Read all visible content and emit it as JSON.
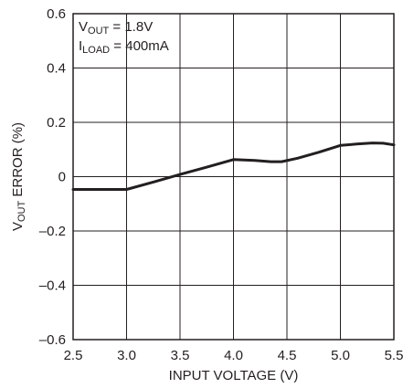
{
  "chart_data": {
    "type": "line",
    "title": "",
    "xlabel": "INPUT VOLTAGE (V)",
    "ylabel": {
      "main": "V",
      "sub": "OUT",
      "rest": " ERROR (%)"
    },
    "xlim": [
      2.5,
      5.5
    ],
    "ylim": [
      -0.6,
      0.6
    ],
    "xticks": [
      "2.5",
      "3.0",
      "3.5",
      "4.0",
      "4.5",
      "5.0",
      "5.5"
    ],
    "yticks": [
      "0.6",
      "0.4",
      "0.2",
      "0",
      "–0.2",
      "–0.4",
      "–0.6"
    ],
    "grid": true,
    "annotations": [
      {
        "main": "V",
        "sub": "OUT",
        "rest": " = 1.8V"
      },
      {
        "main": "I",
        "sub": "LOAD",
        "rest": " = 400mA"
      }
    ],
    "series": [
      {
        "x": [
          2.5,
          3.0,
          3.25,
          3.5,
          3.75,
          4.0,
          4.2,
          4.35,
          4.45,
          4.6,
          4.8,
          5.0,
          5.15,
          5.3,
          5.4,
          5.5
        ],
        "y": [
          -0.047,
          -0.047,
          -0.02,
          0.008,
          0.035,
          0.063,
          0.06,
          0.055,
          0.055,
          0.068,
          0.09,
          0.115,
          0.12,
          0.124,
          0.123,
          0.117
        ]
      }
    ],
    "line_color": "#231f20"
  }
}
